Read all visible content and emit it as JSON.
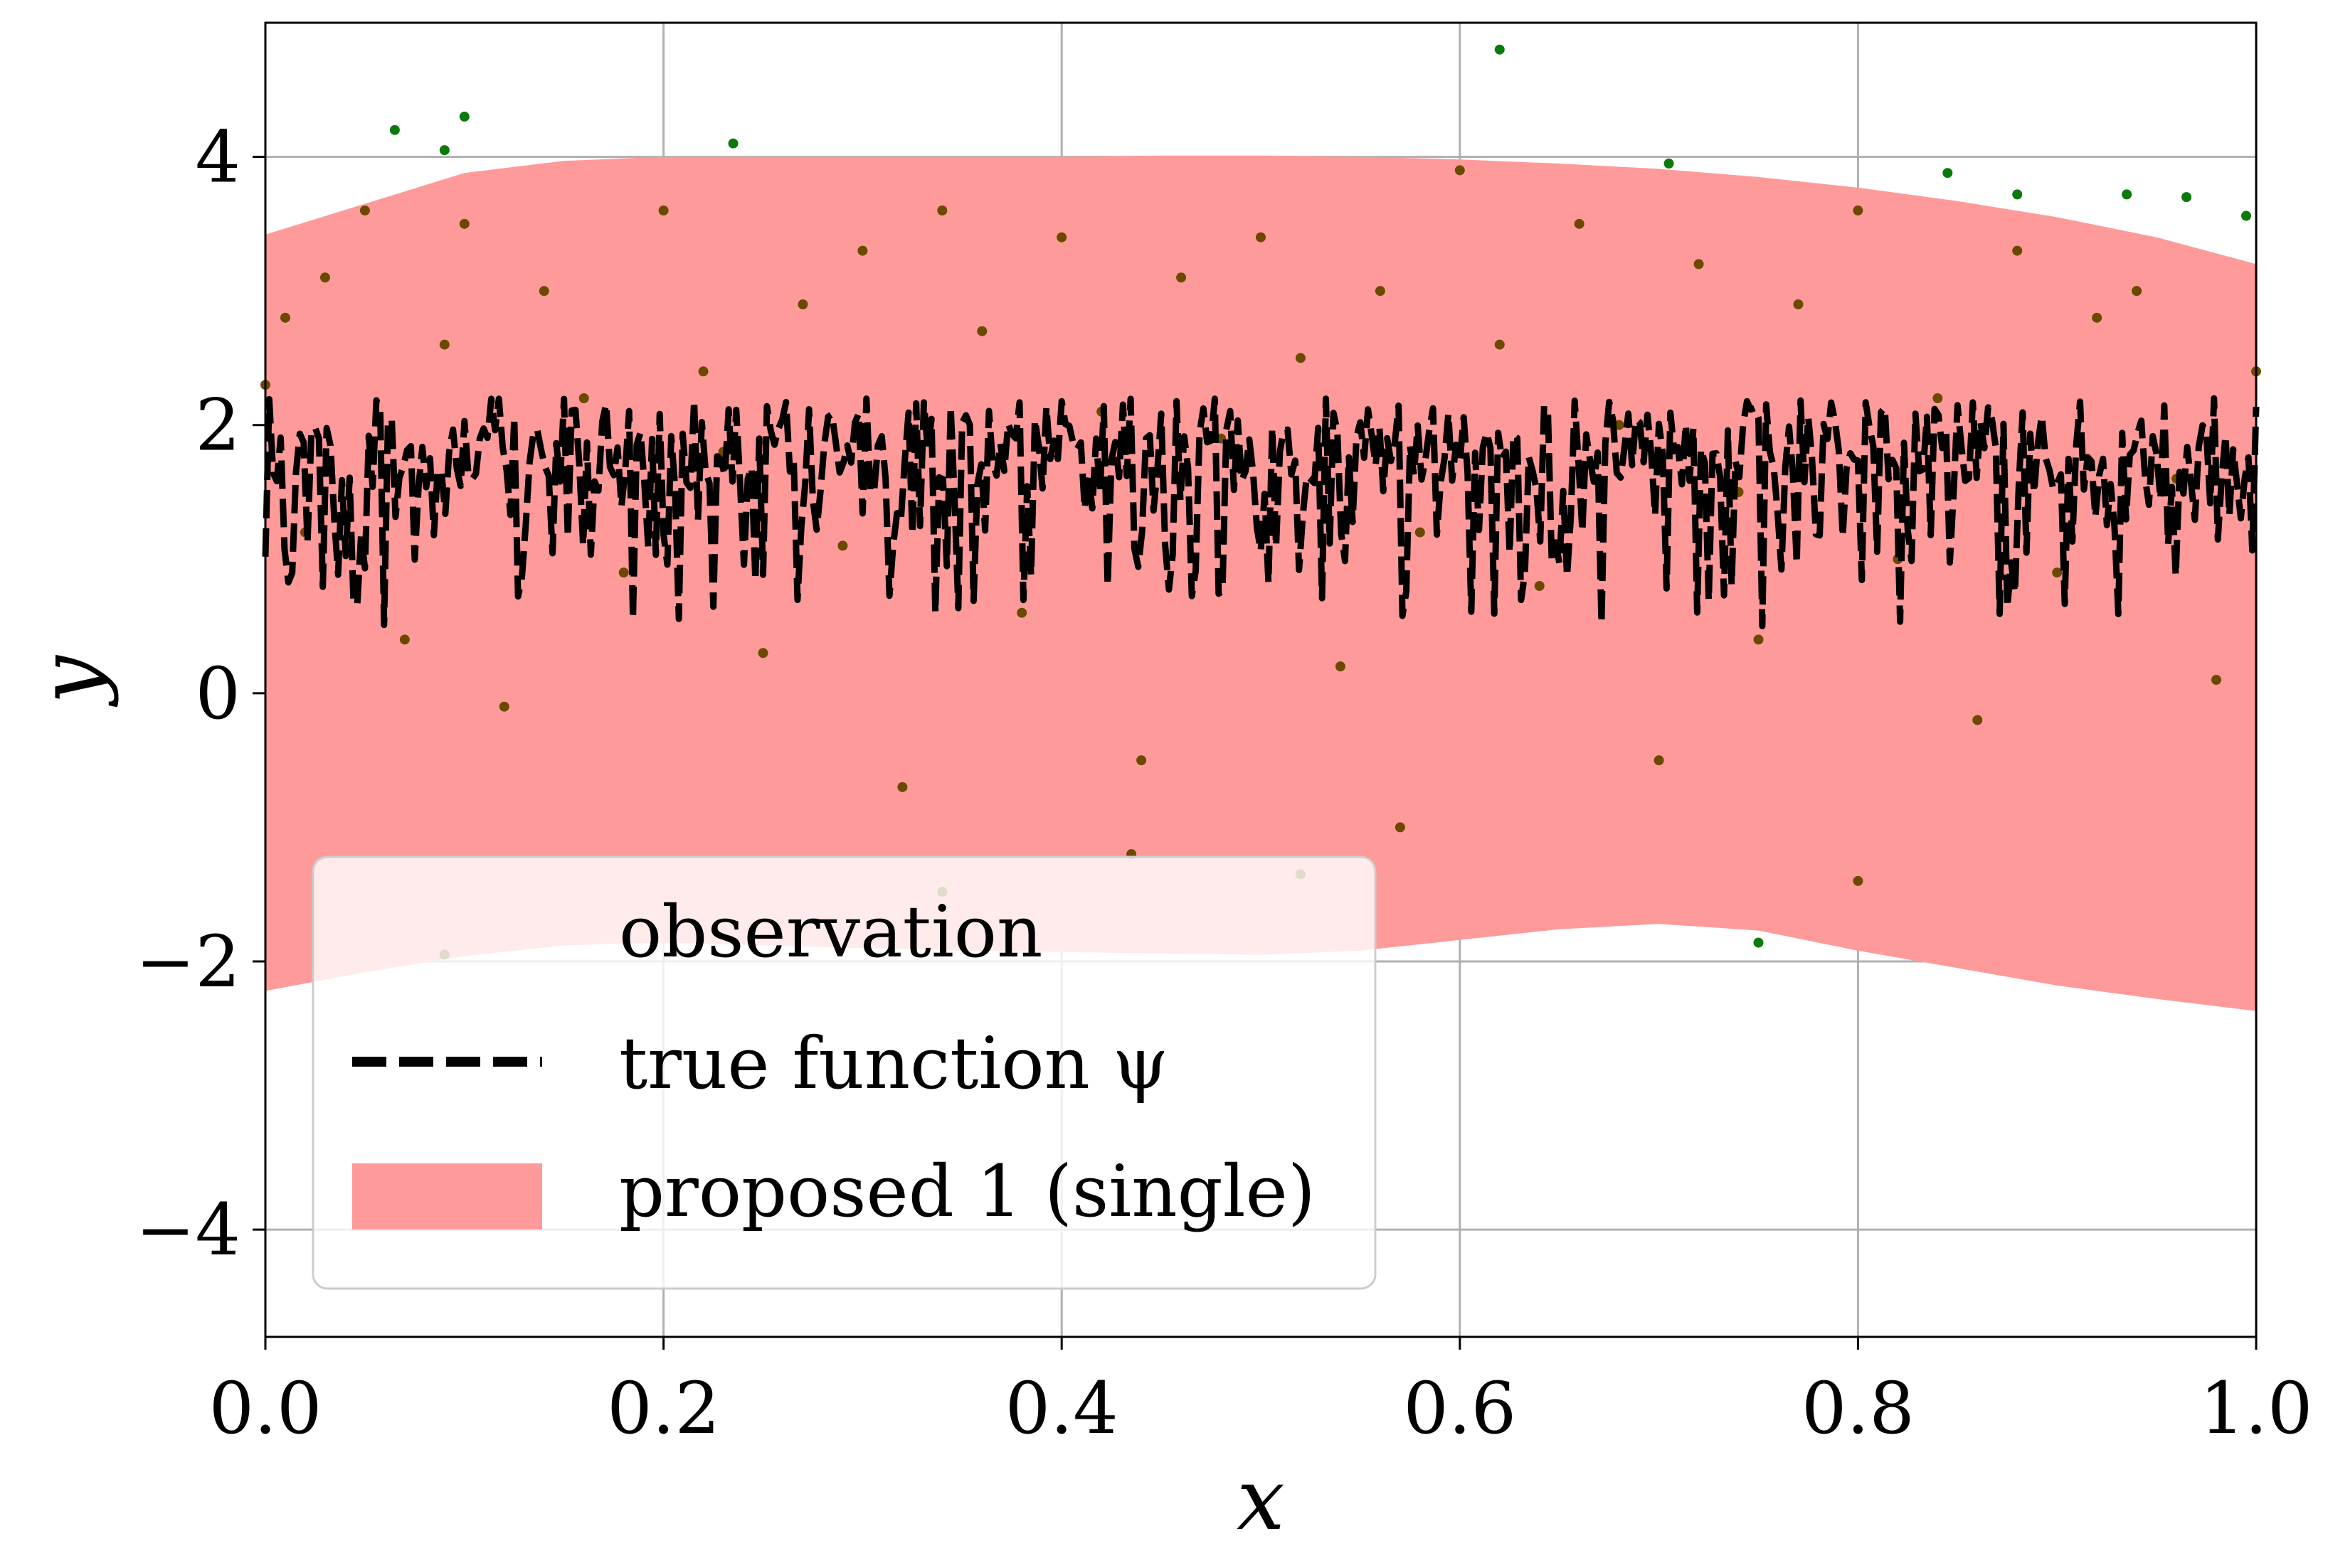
{
  "chart_data": {
    "type": "scatter",
    "title": "",
    "xlabel": "x",
    "ylabel": "y",
    "xlim": [
      0.0,
      1.0
    ],
    "ylim": [
      -4.8,
      5.0
    ],
    "xticks": [
      "0.0",
      "0.2",
      "0.4",
      "0.6",
      "0.8",
      "1.0"
    ],
    "yticks": [
      "−4",
      "−2",
      "0",
      "2",
      "4"
    ],
    "grid": true,
    "legend_position": "lower-left",
    "colors": {
      "observation": "#0a7a0a",
      "true_function": "#000000",
      "band": "#ff9a9a",
      "grid": "#b0b0b0"
    },
    "series": [
      {
        "name": "observation",
        "type": "scatter",
        "note_points": "representative sample of visible points",
        "x": [
          0.0,
          0.01,
          0.02,
          0.03,
          0.05,
          0.07,
          0.09,
          0.1,
          0.12,
          0.14,
          0.16,
          0.18,
          0.2,
          0.22,
          0.23,
          0.25,
          0.27,
          0.29,
          0.3,
          0.32,
          0.34,
          0.36,
          0.38,
          0.4,
          0.42,
          0.44,
          0.46,
          0.48,
          0.5,
          0.52,
          0.54,
          0.56,
          0.58,
          0.6,
          0.62,
          0.64,
          0.66,
          0.68,
          0.7,
          0.72,
          0.74,
          0.75,
          0.77,
          0.8,
          0.82,
          0.84,
          0.86,
          0.88,
          0.9,
          0.92,
          0.94,
          0.96,
          0.98,
          1.0,
          0.065,
          0.1,
          0.09,
          0.235,
          0.62,
          0.705,
          0.845,
          0.88,
          0.935,
          0.965,
          0.995,
          0.09,
          0.75,
          0.34,
          0.8,
          0.57,
          0.435,
          0.52
        ],
        "y": [
          2.3,
          2.8,
          1.2,
          3.1,
          3.6,
          0.4,
          2.6,
          3.5,
          -0.1,
          3.0,
          2.2,
          0.9,
          3.6,
          2.4,
          1.8,
          0.3,
          2.9,
          1.1,
          3.3,
          -0.7,
          3.6,
          2.7,
          0.6,
          3.4,
          2.1,
          -0.5,
          3.1,
          1.9,
          3.4,
          2.5,
          0.2,
          3.0,
          1.2,
          3.9,
          2.6,
          0.8,
          3.5,
          2.0,
          -0.5,
          3.2,
          1.5,
          0.4,
          2.9,
          3.6,
          1.0,
          2.2,
          -0.2,
          3.3,
          0.9,
          2.8,
          3.0,
          1.6,
          0.1,
          2.4,
          4.2,
          4.3,
          4.05,
          4.1,
          4.8,
          3.95,
          3.88,
          3.72,
          3.72,
          3.7,
          3.56,
          -1.95,
          -1.86,
          -1.48,
          -1.4,
          -1.0,
          -1.2,
          -1.35
        ]
      },
      {
        "name": "true function ψ",
        "type": "line",
        "style": "dashed",
        "x": [
          0.0,
          0.05,
          0.1,
          0.15,
          0.2,
          0.25,
          0.3,
          0.35,
          0.4,
          0.45,
          0.5,
          0.55,
          0.6,
          0.65,
          0.7,
          0.75,
          0.8,
          0.85,
          0.9,
          0.95,
          1.0
        ],
        "y_upper": [
          2.2,
          2.2,
          2.2,
          2.2,
          2.2,
          2.2,
          2.2,
          2.2,
          2.2,
          2.2,
          2.2,
          2.2,
          2.2,
          2.2,
          2.2,
          2.2,
          2.2,
          2.2,
          2.2,
          2.2,
          2.2
        ],
        "y_lower": [
          0.5,
          0.5,
          0.5,
          0.5,
          0.5,
          0.5,
          0.5,
          0.5,
          0.6,
          0.6,
          0.8,
          0.6,
          0.5,
          0.5,
          0.5,
          0.5,
          0.5,
          0.5,
          0.5,
          0.5,
          0.7
        ]
      },
      {
        "name": "proposed 1 (single)",
        "type": "area",
        "x": [
          0.0,
          0.05,
          0.1,
          0.15,
          0.2,
          0.25,
          0.3,
          0.35,
          0.4,
          0.45,
          0.5,
          0.55,
          0.6,
          0.65,
          0.7,
          0.75,
          0.8,
          0.85,
          0.9,
          0.95,
          1.0
        ],
        "y_upper": [
          3.42,
          3.65,
          3.88,
          3.97,
          4.0,
          4.0,
          4.0,
          4.0,
          4.0,
          4.01,
          4.01,
          4.0,
          3.98,
          3.95,
          3.91,
          3.85,
          3.77,
          3.67,
          3.55,
          3.4,
          3.2
        ],
        "y_lower": [
          -2.22,
          -2.08,
          -1.96,
          -1.88,
          -1.86,
          -1.88,
          -1.9,
          -1.92,
          -1.93,
          -1.94,
          -1.95,
          -1.92,
          -1.84,
          -1.76,
          -1.72,
          -1.77,
          -1.92,
          -2.05,
          -2.18,
          -2.28,
          -2.37
        ]
      }
    ],
    "legend": {
      "entries": [
        "observation",
        "true function ψ",
        "proposed 1 (single)"
      ]
    }
  }
}
